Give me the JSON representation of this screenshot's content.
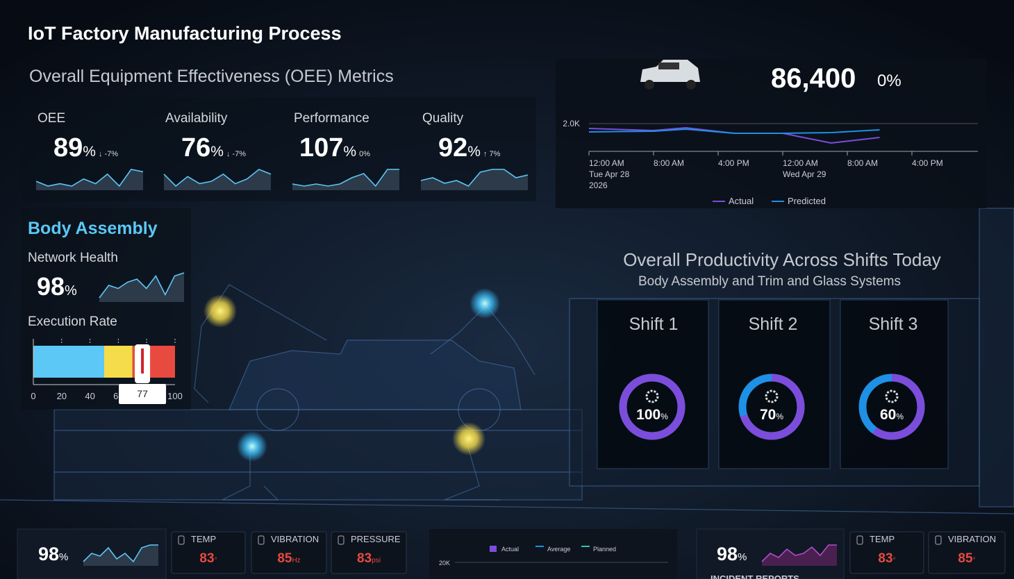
{
  "title": "IoT Factory Manufacturing Process",
  "oee": {
    "title": "Overall Equipment Effectiveness (OEE) Metrics",
    "metrics": [
      {
        "label": "OEE",
        "value": 89,
        "unit": "%",
        "delta": "↓ -7%",
        "trend": [
          4,
          2,
          3,
          2,
          5,
          3,
          7,
          2,
          9,
          8
        ]
      },
      {
        "label": "Availability",
        "value": 76,
        "unit": "%",
        "delta": "↓ -7%",
        "trend": [
          7,
          2,
          6,
          3,
          4,
          7,
          3,
          5,
          9,
          7
        ]
      },
      {
        "label": "Performance",
        "value": 107,
        "unit": "%",
        "delta": "0%",
        "trend": [
          3,
          2,
          3,
          2,
          3,
          6,
          8,
          2,
          10,
          10
        ]
      },
      {
        "label": "Quality",
        "value": 92,
        "unit": "%",
        "delta": "↑ 7%",
        "trend": [
          4,
          5,
          3,
          4,
          2,
          7,
          8,
          8,
          5,
          6
        ]
      }
    ]
  },
  "production": {
    "count": "86,400",
    "change": "0%"
  },
  "chart_data": {
    "type": "line",
    "x": [
      0,
      8,
      12,
      18,
      24,
      30,
      36
    ],
    "xlim": [
      0,
      48
    ],
    "xticks": [
      {
        "value": 0,
        "label": "12:00 AM\nTue Apr 28\n2026"
      },
      {
        "value": 8,
        "label": "8:00 AM"
      },
      {
        "value": 16,
        "label": "4:00 PM"
      },
      {
        "value": 24,
        "label": "12:00 AM\nWed Apr 29"
      },
      {
        "value": 32,
        "label": "8:00 AM"
      },
      {
        "value": 40,
        "label": "4:00 PM"
      }
    ],
    "ylim": [
      1600,
      2100
    ],
    "yticks": [
      {
        "value": 2000,
        "label": "2.0K"
      }
    ],
    "series": [
      {
        "name": "Actual",
        "color": "#7c4ddb",
        "values": [
          1930,
          1900,
          1940,
          1860,
          1860,
          1720,
          1800
        ]
      },
      {
        "name": "Predicted",
        "color": "#1e90e6",
        "values": [
          1880,
          1890,
          1920,
          1860,
          1860,
          1870,
          1910
        ]
      }
    ]
  },
  "body": {
    "title": "Body Assembly",
    "network": {
      "label": "Network Health",
      "value": 98,
      "unit": "%",
      "trend": [
        2,
        6,
        5,
        7,
        8,
        5,
        9,
        3,
        9,
        10
      ]
    },
    "execution": {
      "label": "Execution Rate",
      "value": 77,
      "lim": [
        0,
        100
      ],
      "ticks": [
        0,
        20,
        40,
        60,
        80,
        100
      ],
      "bands": [
        {
          "from": 0,
          "to": 50,
          "color": "#5bc8f5"
        },
        {
          "from": 50,
          "to": 70,
          "color": "#f5dc4a"
        },
        {
          "from": 70,
          "to": 100,
          "color": "#e84a3f"
        }
      ]
    }
  },
  "productivity": {
    "title": "Overall Productivity Across Shifts Today",
    "subtitle": "Body Assembly and Trim and Glass Systems",
    "shifts": [
      {
        "name": "Shift 1",
        "value": 100,
        "unit": "%"
      },
      {
        "name": "Shift 2",
        "value": 70,
        "unit": "%"
      },
      {
        "name": "Shift 3",
        "value": 60,
        "unit": "%"
      }
    ]
  },
  "bottom": {
    "left": {
      "value": 98,
      "unit": "%",
      "trend": [
        3,
        6,
        5,
        8,
        4,
        6,
        3,
        8,
        9,
        9
      ],
      "sensors": [
        {
          "label": "TEMP",
          "value": 83,
          "unit": "°"
        },
        {
          "label": "VIBRATION",
          "value": 85,
          "unit": "Hz"
        },
        {
          "label": "PRESSURE",
          "value": 83,
          "unit": "psi"
        }
      ]
    },
    "chart": {
      "legend": [
        {
          "name": "Actual",
          "color": "#7c4ddb"
        },
        {
          "name": "Average",
          "color": "#1e90e6"
        },
        {
          "name": "Planned",
          "color": "#2ec4b6"
        }
      ],
      "yticks": [
        {
          "value": 20000,
          "label": "20K"
        }
      ]
    },
    "right": {
      "value": 98,
      "unit": "%",
      "label": "INCIDENT REPORTS",
      "trend": [
        2,
        6,
        4,
        8,
        5,
        6,
        9,
        5,
        10,
        10
      ],
      "sensors": [
        {
          "label": "TEMP",
          "value": 83,
          "unit": "°"
        },
        {
          "label": "VIBRATION",
          "value": 85,
          "unit": "°"
        }
      ]
    }
  }
}
